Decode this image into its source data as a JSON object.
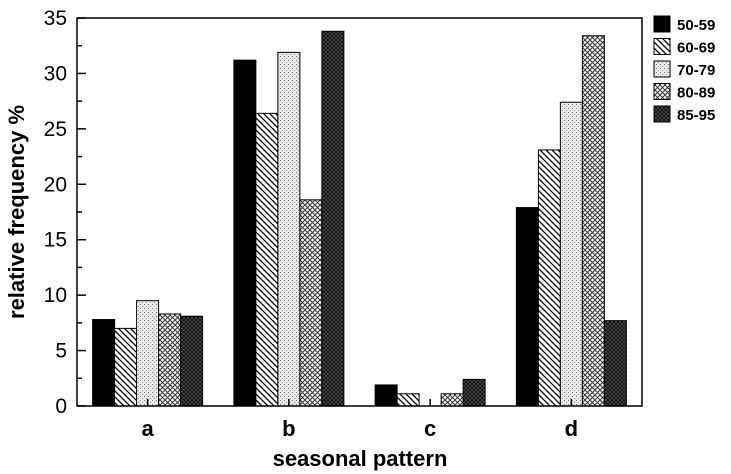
{
  "chart_data": {
    "type": "bar",
    "xlabel": "seasonal pattern",
    "ylabel": "relative frequency %",
    "categories": [
      "a",
      "b",
      "c",
      "d"
    ],
    "ylim": [
      0,
      35
    ],
    "yticks": [
      0,
      5,
      10,
      15,
      20,
      25,
      30,
      35
    ],
    "grid": false,
    "legend_position": "right",
    "series": [
      {
        "name": "50-59",
        "values": [
          7.8,
          31.2,
          1.9,
          17.9
        ],
        "pattern": "solid-black"
      },
      {
        "name": "60-69",
        "values": [
          7.0,
          26.4,
          1.1,
          23.1
        ],
        "pattern": "diagonal-hatch"
      },
      {
        "name": "70-79",
        "values": [
          9.5,
          31.9,
          0,
          27.4
        ],
        "pattern": "light-stipple"
      },
      {
        "name": "80-89",
        "values": [
          8.3,
          18.6,
          1.1,
          33.4
        ],
        "pattern": "crosshatch"
      },
      {
        "name": "85-95",
        "values": [
          8.1,
          33.8,
          2.4,
          7.7
        ],
        "pattern": "dark-crosshatch"
      }
    ]
  }
}
